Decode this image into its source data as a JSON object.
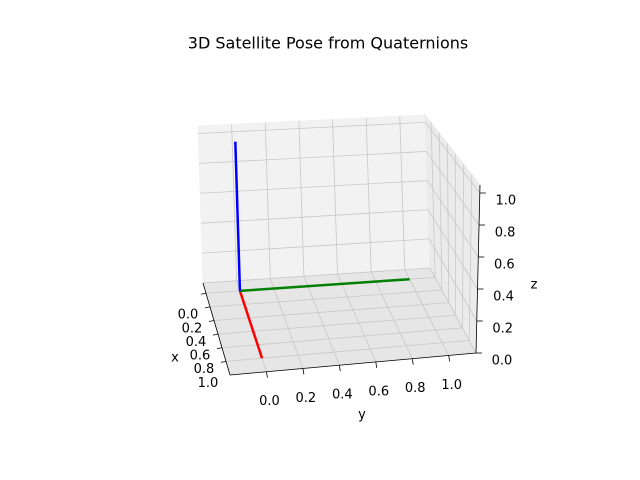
{
  "chart_data": {
    "type": "line3d",
    "title": "3D Satellite Pose from Quaternions",
    "xlabel": "x",
    "ylabel": "y",
    "zlabel": "z",
    "xlim": [
      -0.15,
      1.2
    ],
    "ylim": [
      -0.2,
      1.15
    ],
    "zlim": [
      0,
      1.05
    ],
    "xticks": [
      {
        "value": 0,
        "label": "0.0"
      },
      0.2,
      0.4,
      0.6,
      0.8,
      {
        "value": 1,
        "label": "1.0"
      }
    ],
    "yticks": [
      {
        "value": 0,
        "label": "0.0"
      },
      0.2,
      0.4,
      0.6,
      0.8,
      {
        "value": 1,
        "label": "1.0"
      }
    ],
    "zticks": [
      {
        "value": 0,
        "label": "0.0"
      },
      0.2,
      0.4,
      0.6,
      0.8,
      {
        "value": 1,
        "label": "1.0"
      }
    ],
    "grid": true,
    "series": [
      {
        "color": "#ff0000",
        "x": [
          0,
          1
        ],
        "y": [
          0,
          0
        ],
        "z": [
          0,
          0
        ]
      },
      {
        "color": "#008000",
        "x": [
          0,
          0
        ],
        "y": [
          0,
          1
        ],
        "z": [
          0,
          0
        ]
      },
      {
        "color": "#0000ff",
        "x": [
          0,
          0
        ],
        "y": [
          0,
          0
        ],
        "z": [
          0,
          1
        ]
      }
    ]
  }
}
